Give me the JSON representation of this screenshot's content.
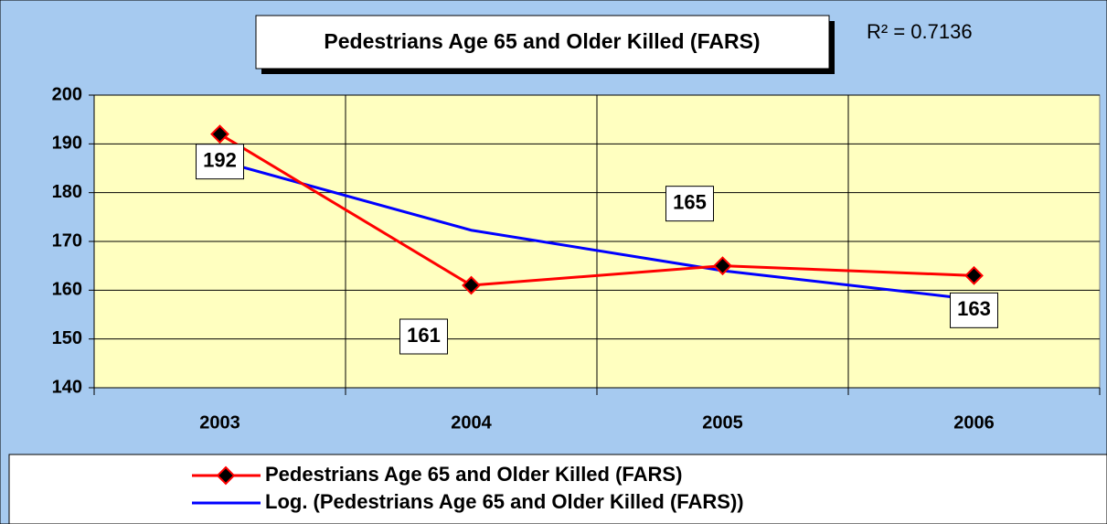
{
  "chart_data": {
    "type": "line",
    "title": "Pedestrians Age 65 and Older Killed (FARS)",
    "annotation": "R² = 0.7136",
    "categories": [
      "2003",
      "2004",
      "2005",
      "2006"
    ],
    "series": [
      {
        "name": "Pedestrians Age 65 and Older Killed (FARS)",
        "color": "#ff0000",
        "marker_color": "#000000",
        "values": [
          192,
          161,
          165,
          163
        ]
      },
      {
        "name": "Log. (Pedestrians Age 65 and Older Killed (FARS))",
        "color": "#0000ff",
        "values": [
          186.5,
          172.3,
          164.0,
          158.1
        ]
      }
    ],
    "data_labels_series": 0,
    "ylim": [
      140,
      200
    ],
    "yticks": [
      140,
      150,
      160,
      170,
      180,
      190,
      200
    ],
    "grid": true,
    "legend": "bottom"
  }
}
